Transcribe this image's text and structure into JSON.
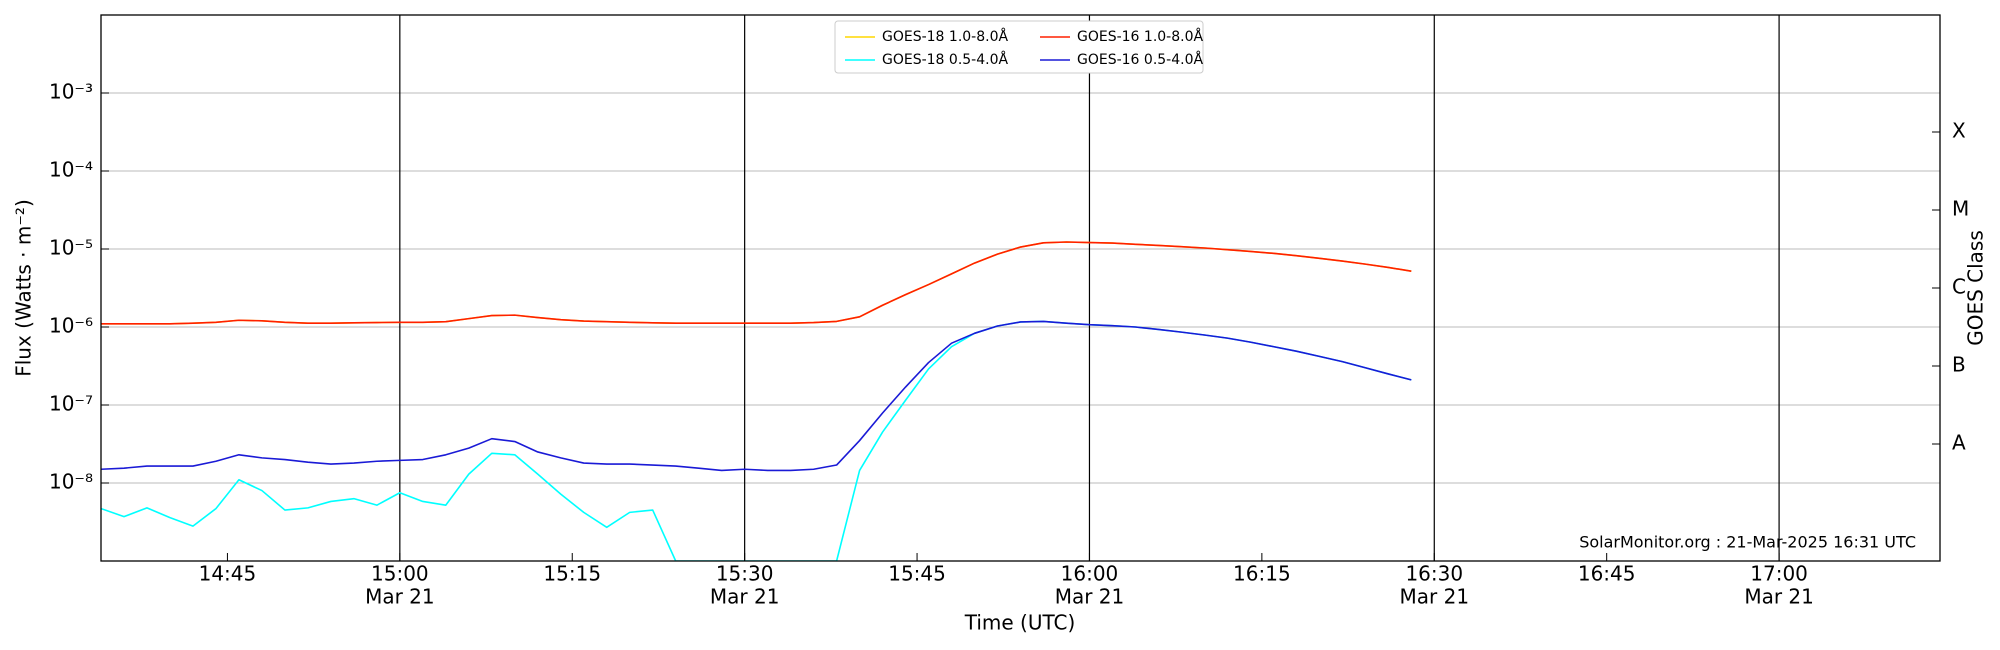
{
  "chart_data": {
    "type": "line",
    "xlabel": "Time (UTC)",
    "ylabel": "Flux (Watts · m⁻²)",
    "y2label": "GOES Class",
    "annotation": "SolarMonitor.org : 21-Mar-2025 16:31 UTC",
    "log_y": true,
    "grid": true,
    "legend": "upper center",
    "xlim": [
      "14:34",
      "17:14"
    ],
    "xticks": [
      {
        "value": "14:45",
        "label": [
          "14:45"
        ]
      },
      {
        "value": "15:00",
        "label": [
          "15:00",
          "Mar 21"
        ]
      },
      {
        "value": "15:15",
        "label": [
          "15:15"
        ]
      },
      {
        "value": "15:30",
        "label": [
          "15:30",
          "Mar 21"
        ]
      },
      {
        "value": "15:45",
        "label": [
          "15:45"
        ]
      },
      {
        "value": "16:00",
        "label": [
          "16:00",
          "Mar 21"
        ]
      },
      {
        "value": "16:15",
        "label": [
          "16:15"
        ]
      },
      {
        "value": "16:30",
        "label": [
          "16:30",
          "Mar 21"
        ]
      },
      {
        "value": "16:45",
        "label": [
          "16:45"
        ]
      },
      {
        "value": "17:00",
        "label": [
          "17:00",
          "Mar 21"
        ]
      }
    ],
    "ylim": [
      1e-09,
      0.01
    ],
    "yticks": [
      {
        "value": 1e-08,
        "label": "10⁻⁸"
      },
      {
        "value": 1e-07,
        "label": "10⁻⁷"
      },
      {
        "value": 1e-06,
        "label": "10⁻⁶"
      },
      {
        "value": 1e-05,
        "label": "10⁻⁵"
      },
      {
        "value": 0.0001,
        "label": "10⁻⁴"
      },
      {
        "value": 0.001,
        "label": "10⁻³"
      }
    ],
    "y2lim": [
      1e-09,
      0.01
    ],
    "y2ticks": [
      {
        "value": 3.162e-08,
        "label": "A"
      },
      {
        "value": 3.162e-07,
        "label": "B"
      },
      {
        "value": 3.162e-06,
        "label": "C"
      },
      {
        "value": 3.162e-05,
        "label": "M"
      },
      {
        "value": 0.0003162,
        "label": "X"
      }
    ],
    "x": [
      "14:34",
      "14:36",
      "14:38",
      "14:40",
      "14:42",
      "14:44",
      "14:46",
      "14:48",
      "14:50",
      "14:52",
      "14:54",
      "14:56",
      "14:58",
      "15:00",
      "15:02",
      "15:04",
      "15:06",
      "15:08",
      "15:10",
      "15:12",
      "15:14",
      "15:16",
      "15:18",
      "15:20",
      "15:22",
      "15:24",
      "15:26",
      "15:28",
      "15:30",
      "15:32",
      "15:34",
      "15:36",
      "15:38",
      "15:40",
      "15:42",
      "15:44",
      "15:46",
      "15:48",
      "15:50",
      "15:52",
      "15:54",
      "15:56",
      "15:58",
      "16:00",
      "16:02",
      "16:04",
      "16:06",
      "16:08",
      "16:10",
      "16:12",
      "16:14",
      "16:16",
      "16:18",
      "16:20",
      "16:22",
      "16:24",
      "16:26",
      "16:28"
    ],
    "series": [
      {
        "name": "GOES-18 1.0-8.0Å",
        "color": "#ffd700",
        "values": [
          1.1e-06,
          1.1e-06,
          1.1e-06,
          1.1e-06,
          1.12e-06,
          1.15e-06,
          1.22e-06,
          1.2e-06,
          1.15e-06,
          1.12e-06,
          1.12e-06,
          1.13e-06,
          1.14e-06,
          1.15e-06,
          1.15e-06,
          1.17e-06,
          1.28e-06,
          1.4e-06,
          1.42e-06,
          1.32e-06,
          1.24e-06,
          1.19e-06,
          1.17e-06,
          1.15e-06,
          1.13e-06,
          1.12e-06,
          1.12e-06,
          1.12e-06,
          1.12e-06,
          1.12e-06,
          1.12e-06,
          1.14e-06,
          1.18e-06,
          1.35e-06,
          1.9e-06,
          2.6e-06,
          3.5e-06,
          4.8e-06,
          6.6e-06,
          8.6e-06,
          1.06e-05,
          1.2e-05,
          1.23e-05,
          1.21e-05,
          1.19e-05,
          1.15e-05,
          1.11e-05,
          1.07e-05,
          1.03e-05,
          9.8e-06,
          9.3e-06,
          8.8e-06,
          8.2e-06,
          7.6e-06,
          7e-06,
          6.4e-06,
          5.8e-06,
          5.2e-06
        ]
      },
      {
        "name": "GOES-18 0.5-4.0Å",
        "color": "#00ffff",
        "values": [
          4.7e-09,
          3.7e-09,
          4.8e-09,
          3.6e-09,
          2.8e-09,
          4.7e-09,
          1.1e-08,
          8e-09,
          4.5e-09,
          4.8e-09,
          5.8e-09,
          6.3e-09,
          5.2e-09,
          7.5e-09,
          5.8e-09,
          5.2e-09,
          1.3e-08,
          2.4e-08,
          2.3e-08,
          1.3e-08,
          7.2e-09,
          4.2e-09,
          2.7e-09,
          4.2e-09,
          4.5e-09,
          1e-09,
          1e-09,
          1e-09,
          1e-09,
          1e-09,
          1e-09,
          1e-09,
          1e-09,
          1.45e-08,
          4.5e-08,
          1.15e-07,
          2.9e-07,
          5.6e-07,
          8.3e-07,
          1.03e-06,
          1.16e-06,
          1.18e-06,
          1.12e-06,
          1.07e-06,
          1.04e-06,
          1e-06,
          9.3e-07,
          8.6e-07,
          7.9e-07,
          7.2e-07,
          6.4e-07,
          5.6e-07,
          4.9e-07,
          4.2e-07,
          3.6e-07,
          3e-07,
          2.5e-07,
          2.1e-07
        ]
      },
      {
        "name": "GOES-16 1.0-8.0Å",
        "color": "#ff2000",
        "values": [
          1.1e-06,
          1.1e-06,
          1.1e-06,
          1.1e-06,
          1.12e-06,
          1.15e-06,
          1.22e-06,
          1.2e-06,
          1.15e-06,
          1.12e-06,
          1.12e-06,
          1.13e-06,
          1.14e-06,
          1.15e-06,
          1.15e-06,
          1.17e-06,
          1.28e-06,
          1.4e-06,
          1.42e-06,
          1.32e-06,
          1.24e-06,
          1.19e-06,
          1.17e-06,
          1.15e-06,
          1.13e-06,
          1.12e-06,
          1.12e-06,
          1.12e-06,
          1.12e-06,
          1.12e-06,
          1.12e-06,
          1.14e-06,
          1.18e-06,
          1.35e-06,
          1.9e-06,
          2.6e-06,
          3.5e-06,
          4.8e-06,
          6.6e-06,
          8.6e-06,
          1.06e-05,
          1.2e-05,
          1.23e-05,
          1.21e-05,
          1.19e-05,
          1.15e-05,
          1.11e-05,
          1.07e-05,
          1.03e-05,
          9.8e-06,
          9.3e-06,
          8.8e-06,
          8.2e-06,
          7.6e-06,
          7e-06,
          6.4e-06,
          5.8e-06,
          5.2e-06
        ]
      },
      {
        "name": "GOES-16 0.5-4.0Å",
        "color": "#1a1ad6",
        "values": [
          1.5e-08,
          1.55e-08,
          1.65e-08,
          1.65e-08,
          1.65e-08,
          1.9e-08,
          2.3e-08,
          2.1e-08,
          2e-08,
          1.85e-08,
          1.75e-08,
          1.8e-08,
          1.9e-08,
          1.95e-08,
          2e-08,
          2.3e-08,
          2.8e-08,
          3.7e-08,
          3.4e-08,
          2.5e-08,
          2.1e-08,
          1.8e-08,
          1.75e-08,
          1.75e-08,
          1.7e-08,
          1.65e-08,
          1.55e-08,
          1.45e-08,
          1.5e-08,
          1.45e-08,
          1.45e-08,
          1.5e-08,
          1.7e-08,
          3.5e-08,
          7.9e-08,
          1.7e-07,
          3.5e-07,
          6.2e-07,
          8.3e-07,
          1.03e-06,
          1.16e-06,
          1.18e-06,
          1.12e-06,
          1.07e-06,
          1.04e-06,
          1e-06,
          9.3e-07,
          8.6e-07,
          7.9e-07,
          7.2e-07,
          6.4e-07,
          5.6e-07,
          4.9e-07,
          4.2e-07,
          3.6e-07,
          3e-07,
          2.5e-07,
          2.1e-07
        ]
      }
    ]
  }
}
